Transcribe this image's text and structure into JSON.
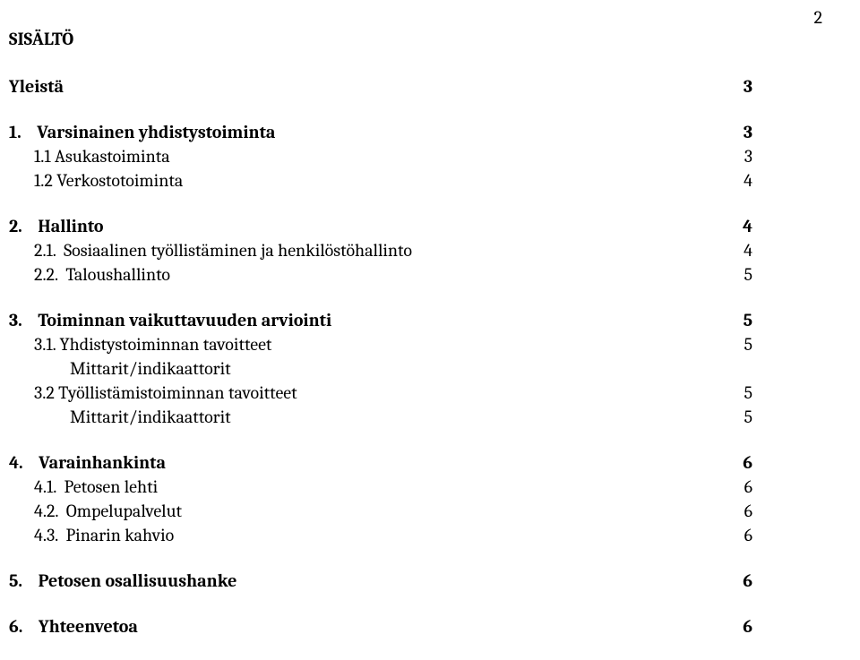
{
  "page_number": "2",
  "title": "SISÄLTÖ",
  "groups": [
    [
      {
        "label": "Yleistä",
        "page": "3",
        "bold": true,
        "indent": 0
      }
    ],
    [
      {
        "label": "1.    Varsinainen yhdistystoiminta",
        "page": "3",
        "bold": true,
        "indent": 0
      },
      {
        "label": "1.1 Asukastoiminta",
        "page": "3",
        "bold": false,
        "indent": 1
      },
      {
        "label": "1.2 Verkostotoiminta",
        "page": "4",
        "bold": false,
        "indent": 1
      }
    ],
    [
      {
        "label": "2.    Hallinto",
        "page": "4",
        "bold": true,
        "indent": 0
      },
      {
        "label": "2.1.  Sosiaalinen työllistäminen ja henkilöstöhallinto",
        "page": "4",
        "bold": false,
        "indent": 1
      },
      {
        "label": "2.2.  Taloushallinto",
        "page": "5",
        "bold": false,
        "indent": 1
      }
    ],
    [
      {
        "label": "3.    Toiminnan vaikuttavuuden arviointi",
        "page": "5",
        "bold": true,
        "indent": 0
      },
      {
        "label": "3.1. Yhdistystoiminnan tavoitteet",
        "page": "5",
        "bold": false,
        "indent": 1
      },
      {
        "label": "Mittarit/indikaattorit",
        "page": "",
        "bold": false,
        "indent": 2
      },
      {
        "label": "3.2 Työllistämistoiminnan tavoitteet",
        "page": "5",
        "bold": false,
        "indent": 1
      },
      {
        "label": "Mittarit/indikaattorit",
        "page": "5",
        "bold": false,
        "indent": 2
      }
    ],
    [
      {
        "label": "4.    Varainhankinta",
        "page": "6",
        "bold": true,
        "indent": 0
      },
      {
        "label": "4.1.  Petosen lehti",
        "page": "6",
        "bold": false,
        "indent": 1
      },
      {
        "label": "4.2.  Ompelupalvelut",
        "page": "6",
        "bold": false,
        "indent": 1
      },
      {
        "label": "4.3.  Pinarin kahvio",
        "page": "6",
        "bold": false,
        "indent": 1
      }
    ],
    [
      {
        "label": "5.    Petosen osallisuushanke",
        "page": "6",
        "bold": true,
        "indent": 0
      }
    ],
    [
      {
        "label": "6.    Yhteenvetoa",
        "page": "6",
        "bold": true,
        "indent": 0
      }
    ]
  ]
}
